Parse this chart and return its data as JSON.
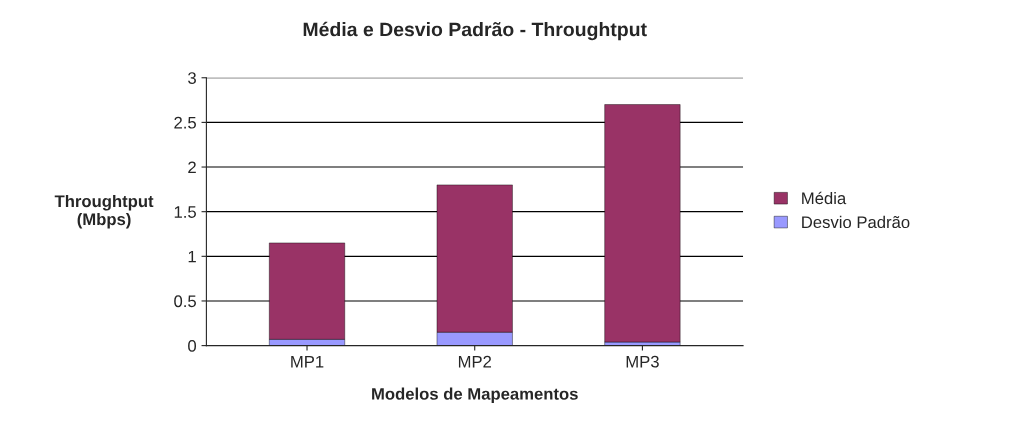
{
  "chart_data": {
    "type": "bar",
    "title": "Média e Desvio Padrão - Throughtput",
    "xlabel": "Modelos de Mapeamentos",
    "ylabel": "Throughtput\n(Mbps)",
    "categories": [
      "MP1",
      "MP2",
      "MP3"
    ],
    "stacked": true,
    "series": [
      {
        "name": "Desvio Padrão",
        "color": "#9999ff",
        "values": [
          0.07,
          0.15,
          0.04
        ]
      },
      {
        "name": "Média",
        "color": "#993366",
        "values": [
          1.08,
          1.65,
          2.66
        ]
      }
    ],
    "ylim": [
      0,
      3
    ],
    "yticks": [
      0,
      0.5,
      1,
      1.5,
      2,
      2.5,
      3
    ],
    "grid": "y",
    "legend": "right"
  }
}
